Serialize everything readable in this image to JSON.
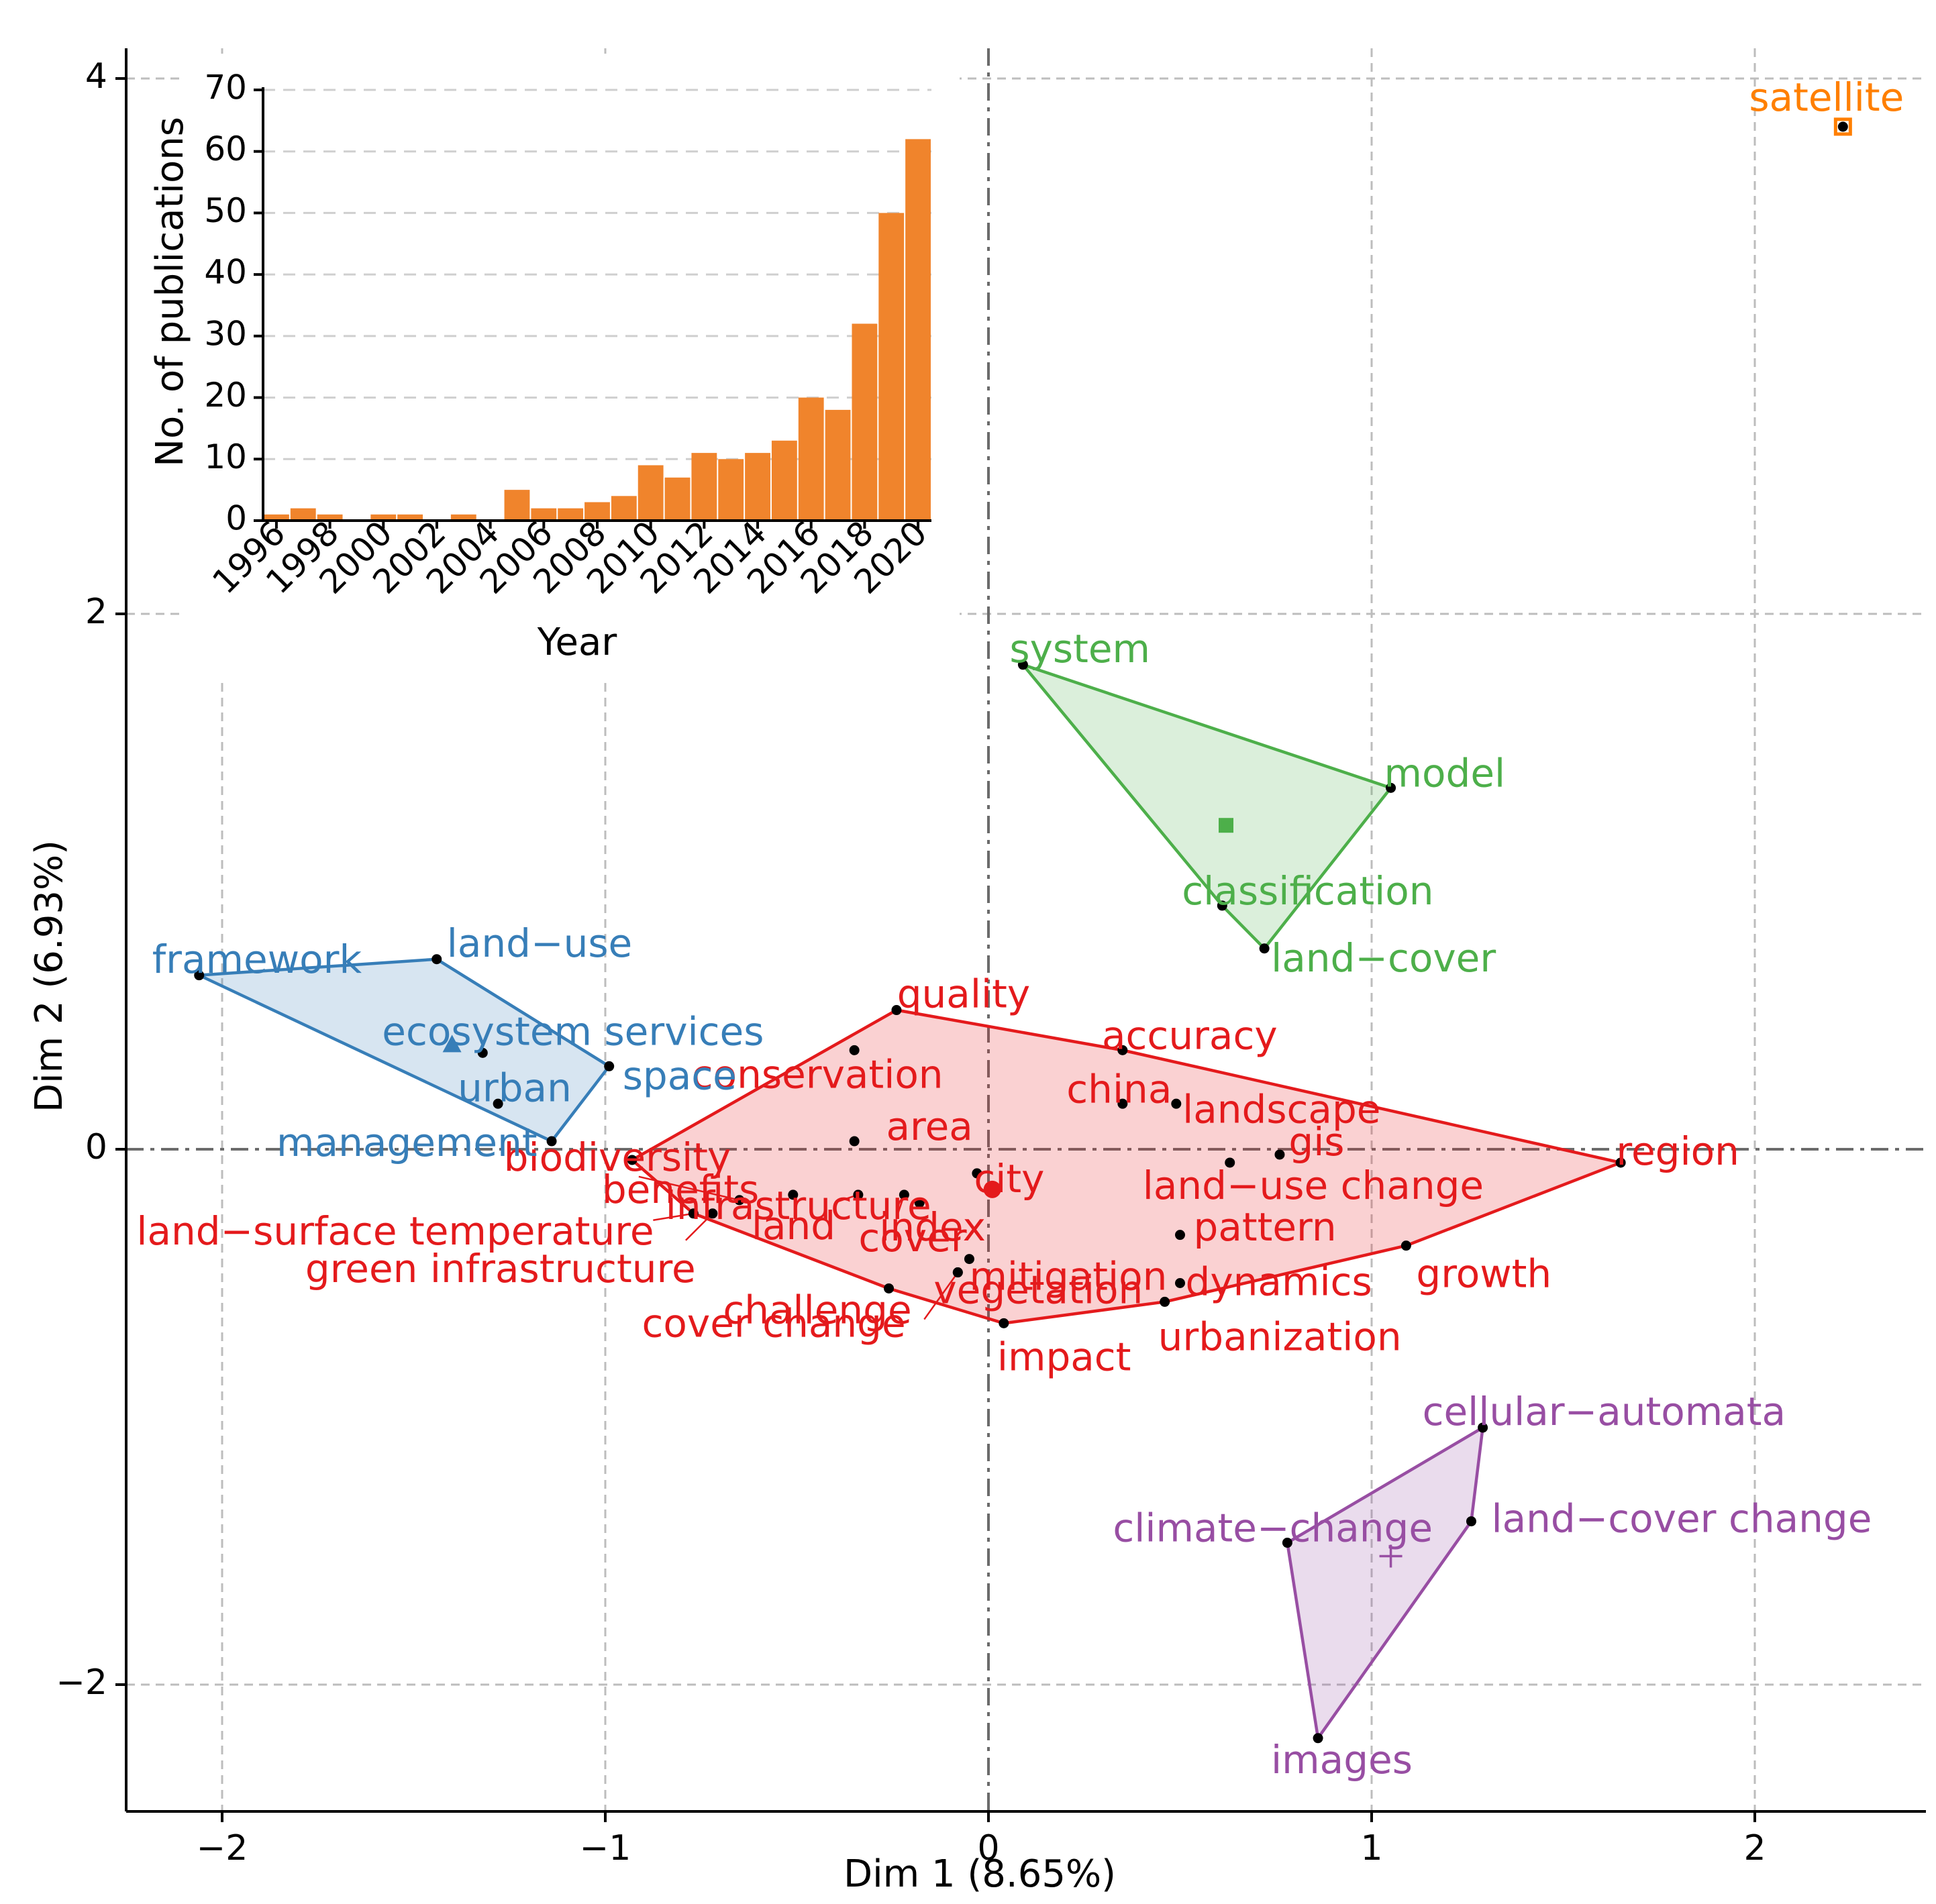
{
  "chart_data": [
    {
      "type": "scatter",
      "title": "",
      "xlabel": "Dim 1 (8.65%)",
      "ylabel": "Dim 2 (6.93%)",
      "xlim": [
        -2.28,
        2.45
      ],
      "ylim": [
        -2.45,
        4.2
      ],
      "xticks": [
        -2,
        -1,
        0,
        1,
        2
      ],
      "xtick_labels": [
        "−2",
        "−1",
        "0",
        "1",
        "2"
      ],
      "yticks": [
        -2,
        0,
        2,
        4
      ],
      "ytick_labels": [
        "−2",
        "0",
        "2",
        "4"
      ],
      "clusters": [
        {
          "name": "cluster-red",
          "color": "#e41a1c",
          "centroid": [
            0.01,
            -0.15
          ],
          "centroid_marker": "circle",
          "hull": [
            "biodiversity",
            "quality",
            "accuracy",
            "region",
            "growth",
            "urbanization",
            "impact",
            "cover change",
            "land−surface temperature"
          ],
          "points": [
            {
              "label": "quality",
              "x": -0.24,
              "y": 0.52
            },
            {
              "label": "conservation",
              "x": -0.35,
              "y": 0.37
            },
            {
              "label": "accuracy",
              "x": 0.35,
              "y": 0.37
            },
            {
              "label": "china",
              "x": 0.35,
              "y": 0.17
            },
            {
              "label": "landscape",
              "x": 0.49,
              "y": 0.17
            },
            {
              "label": "area",
              "x": -0.35,
              "y": 0.03
            },
            {
              "label": "biodiversity",
              "x": -0.93,
              "y": -0.04
            },
            {
              "label": "region",
              "x": 1.65,
              "y": -0.05
            },
            {
              "label": "gis",
              "x": 0.76,
              "y": -0.02
            },
            {
              "label": "city",
              "x": -0.03,
              "y": -0.09
            },
            {
              "label": "land−use change",
              "x": 0.63,
              "y": -0.05
            },
            {
              "label": "infrastructure",
              "x": -0.51,
              "y": -0.17
            },
            {
              "label": "benefits",
              "x": -0.65,
              "y": -0.19
            },
            {
              "label": "land−surface temperature",
              "x": -0.77,
              "y": -0.24
            },
            {
              "label": "green infrastructure",
              "x": -0.72,
              "y": -0.24
            },
            {
              "label": "land",
              "x": -0.34,
              "y": -0.17
            },
            {
              "label": "cover",
              "x": -0.22,
              "y": -0.17
            },
            {
              "label": "index",
              "x": -0.18,
              "y": -0.2
            },
            {
              "label": "pattern",
              "x": 0.5,
              "y": -0.32
            },
            {
              "label": "mitigation",
              "x": -0.05,
              "y": -0.41
            },
            {
              "label": "challenge",
              "x": -0.08,
              "y": -0.46
            },
            {
              "label": "growth",
              "x": 1.09,
              "y": -0.36
            },
            {
              "label": "dynamics",
              "x": 0.5,
              "y": -0.5
            },
            {
              "label": "vegetation",
              "x": -0.08,
              "y": -0.46
            },
            {
              "label": "cover change",
              "x": -0.26,
              "y": -0.52
            },
            {
              "label": "urbanization",
              "x": 0.46,
              "y": -0.57
            },
            {
              "label": "impact",
              "x": 0.04,
              "y": -0.65
            }
          ]
        },
        {
          "name": "cluster-green",
          "color": "#4daf4a",
          "centroid": [
            0.62,
            1.21
          ],
          "centroid_marker": "square",
          "hull": [
            "system",
            "model",
            "land−cover",
            "classification"
          ],
          "points": [
            {
              "label": "system",
              "x": 0.09,
              "y": 1.81
            },
            {
              "label": "model",
              "x": 1.05,
              "y": 1.35
            },
            {
              "label": "classification",
              "x": 0.61,
              "y": 0.91
            },
            {
              "label": "land−cover",
              "x": 0.72,
              "y": 0.75
            }
          ]
        },
        {
          "name": "cluster-blue",
          "color": "#377eb8",
          "centroid": [
            -1.4,
            0.39
          ],
          "centroid_marker": "triangle",
          "hull": [
            "framework",
            "land−use",
            "space",
            "management"
          ],
          "points": [
            {
              "label": "framework",
              "x": -2.06,
              "y": 0.65
            },
            {
              "label": "land−use",
              "x": -1.44,
              "y": 0.71
            },
            {
              "label": "ecosystem services",
              "x": -1.32,
              "y": 0.36
            },
            {
              "label": "space",
              "x": -0.99,
              "y": 0.31
            },
            {
              "label": "urban",
              "x": -1.28,
              "y": 0.17
            },
            {
              "label": "management",
              "x": -1.14,
              "y": 0.03
            }
          ]
        },
        {
          "name": "cluster-purple",
          "color": "#984ea3",
          "centroid": [
            1.05,
            -1.52
          ],
          "centroid_marker": "plus",
          "hull": [
            "cellular−automata",
            "land−cover change",
            "images",
            "climate−change"
          ],
          "points": [
            {
              "label": "cellular−automata",
              "x": 1.29,
              "y": -1.04
            },
            {
              "label": "land−cover change",
              "x": 1.26,
              "y": -1.39
            },
            {
              "label": "climate−change",
              "x": 0.78,
              "y": -1.47
            },
            {
              "label": "images",
              "x": 0.86,
              "y": -2.2
            }
          ]
        },
        {
          "name": "cluster-orange",
          "color": "#ff7f00",
          "centroid": [
            2.23,
            3.82
          ],
          "centroid_marker": "square",
          "hull": [],
          "points": [
            {
              "label": "satellite",
              "x": 2.23,
              "y": 3.82
            }
          ]
        }
      ]
    },
    {
      "type": "bar",
      "title": "",
      "xlabel": "Year",
      "ylabel": "No. of publications",
      "ylim": [
        0,
        70
      ],
      "yticks": [
        0,
        10,
        20,
        30,
        40,
        50,
        60,
        70
      ],
      "color": "#f0842c",
      "categories": [
        "1996",
        "1997",
        "1998",
        "1999",
        "2000",
        "2001",
        "2002",
        "2003",
        "2004",
        "2005",
        "2006",
        "2007",
        "2008",
        "2009",
        "2010",
        "2011",
        "2012",
        "2013",
        "2014",
        "2015",
        "2016",
        "2017",
        "2018",
        "2019",
        "2020"
      ],
      "values": [
        1,
        2,
        1,
        0,
        1,
        1,
        0,
        1,
        0,
        5,
        2,
        2,
        3,
        4,
        9,
        7,
        11,
        10,
        11,
        13,
        20,
        18,
        32,
        50,
        62
      ],
      "xtick_labels": [
        "1996",
        "1998",
        "2000",
        "2002",
        "2004",
        "2006",
        "2008",
        "2010",
        "2012",
        "2014",
        "2016",
        "2018",
        "2020"
      ]
    }
  ]
}
